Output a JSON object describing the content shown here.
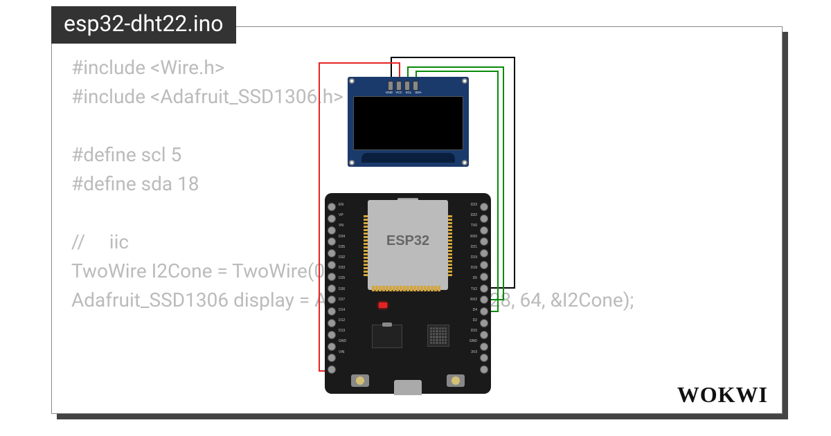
{
  "tab_title": "esp32-dht22.ino",
  "code_lines": [
    "#include <Wire.h>",
    "#include <Adafruit_SSD1306.h>",
    "",
    "#define scl 5",
    "#define sda 18",
    "",
    "//     iic",
    "TwoWire I2Cone = TwoWire(0);",
    "Adafruit_SSD1306 display = Adafruit_SSD1306(128, 64, &I2Cone);"
  ],
  "logo_text": "WOKWI",
  "oled": {
    "pin_labels": [
      "GND",
      "VCC",
      "SCL",
      "SDA"
    ],
    "pcb_color": "#1a3a6b",
    "screen_color": "#000000"
  },
  "esp32": {
    "chip_label": "ESP32",
    "board_color": "#1a1a1a",
    "shield_color": "#bbbbbb",
    "left_pins": [
      "VIN",
      "GND",
      "D13",
      "D12",
      "D14",
      "D27",
      "D26",
      "D25",
      "D33",
      "D32",
      "D35",
      "D34",
      "VN",
      "VP",
      "EN"
    ],
    "right_pins": [
      "3V3",
      "GND",
      "D15",
      "D2",
      "D4",
      "RX2",
      "TX2",
      "D5",
      "D18",
      "D19",
      "D21",
      "RX0",
      "TX0",
      "D22",
      "D23"
    ]
  },
  "wires": {
    "gnd_color": "#000000",
    "vcc_color": "#e62222",
    "scl_color": "#0a8a0a",
    "sda_color": "#0a8a0a"
  },
  "colors": {
    "card_bg": "#ffffff",
    "card_border": "#888888",
    "card_shadow": "#444444",
    "tab_bg": "#333333",
    "tab_text": "#ffffff",
    "code_text": "#bbbbbb",
    "logo_text": "#111111"
  }
}
